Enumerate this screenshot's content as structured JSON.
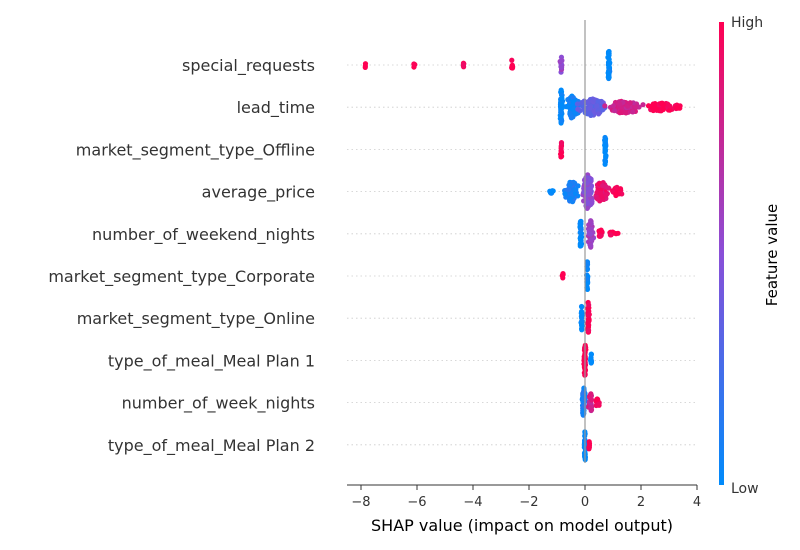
{
  "chart_data": {
    "type": "scatter",
    "subtype": "shap-beeswarm",
    "xlabel": "SHAP value (impact on model output)",
    "xlim": [
      -8.5,
      4
    ],
    "xticks": [
      -8,
      -6,
      -4,
      -2,
      0,
      2,
      4
    ],
    "xtick_labels": [
      "−8",
      "−6",
      "−4",
      "−2",
      "0",
      "2",
      "4"
    ],
    "grid": false,
    "colorbar": {
      "title": "Feature value",
      "high_label": "High",
      "low_label": "Low",
      "low_color": "#008bfb",
      "high_color": "#ff0052",
      "mid_color": "#8a4fd8"
    },
    "features": [
      {
        "name": "special_requests",
        "clusters": [
          {
            "x": -7.85,
            "spread": 0.04,
            "height": 0.12,
            "count": 3,
            "color": 1.0
          },
          {
            "x": -6.1,
            "spread": 0.05,
            "height": 0.15,
            "count": 4,
            "color": 1.0
          },
          {
            "x": -4.35,
            "spread": 0.05,
            "height": 0.2,
            "count": 5,
            "color": 1.0
          },
          {
            "x": -2.6,
            "spread": 0.05,
            "height": 0.28,
            "count": 8,
            "color": 1.0
          },
          {
            "x": -0.85,
            "spread": 0.05,
            "height": 0.42,
            "count": 14,
            "color": 0.55
          },
          {
            "x": 0.85,
            "spread": 0.05,
            "height": 0.75,
            "count": 40,
            "color": 0.0
          }
        ]
      },
      {
        "name": "lead_time",
        "clusters": [
          {
            "x": -0.85,
            "spread": 0.06,
            "height": 0.85,
            "count": 50,
            "color": 0.0
          },
          {
            "x": -0.45,
            "spread": 0.3,
            "height": 0.55,
            "count": 80,
            "color": 0.05
          },
          {
            "x": 0.25,
            "spread": 0.6,
            "height": 0.42,
            "count": 90,
            "color": 0.35
          },
          {
            "x": 1.4,
            "spread": 0.8,
            "height": 0.3,
            "count": 90,
            "color": 0.8
          },
          {
            "x": 2.7,
            "spread": 0.6,
            "height": 0.24,
            "count": 60,
            "color": 1.0
          },
          {
            "x": 3.3,
            "spread": 0.15,
            "height": 0.14,
            "count": 16,
            "color": 1.0
          }
        ]
      },
      {
        "name": "market_segment_type_Offline",
        "clusters": [
          {
            "x": -0.85,
            "spread": 0.04,
            "height": 0.45,
            "count": 14,
            "color": 1.0
          },
          {
            "x": 0.72,
            "spread": 0.04,
            "height": 0.75,
            "count": 30,
            "color": 0.0
          }
        ]
      },
      {
        "name": "average_price",
        "clusters": [
          {
            "x": -1.2,
            "spread": 0.12,
            "height": 0.1,
            "count": 8,
            "color": 0.0
          },
          {
            "x": -0.5,
            "spread": 0.3,
            "height": 0.55,
            "count": 80,
            "color": 0.1
          },
          {
            "x": 0.1,
            "spread": 0.25,
            "height": 0.85,
            "count": 110,
            "color": 0.5
          },
          {
            "x": 0.6,
            "spread": 0.3,
            "height": 0.55,
            "count": 70,
            "color": 0.9
          },
          {
            "x": 1.15,
            "spread": 0.2,
            "height": 0.22,
            "count": 20,
            "color": 1.0
          }
        ]
      },
      {
        "name": "number_of_weekend_nights",
        "clusters": [
          {
            "x": -0.15,
            "spread": 0.04,
            "height": 0.85,
            "count": 40,
            "color": 0.0
          },
          {
            "x": 0.2,
            "spread": 0.12,
            "height": 0.65,
            "count": 35,
            "color": 0.6
          },
          {
            "x": 0.55,
            "spread": 0.1,
            "height": 0.22,
            "count": 18,
            "color": 1.0
          },
          {
            "x": 1.0,
            "spread": 0.25,
            "height": 0.1,
            "count": 10,
            "color": 1.0
          }
        ]
      },
      {
        "name": "market_segment_type_Corporate",
        "clusters": [
          {
            "x": -0.8,
            "spread": 0.03,
            "height": 0.2,
            "count": 5,
            "color": 1.0
          },
          {
            "x": 0.08,
            "spread": 0.03,
            "height": 0.85,
            "count": 30,
            "color": 0.0
          }
        ]
      },
      {
        "name": "market_segment_type_Online",
        "clusters": [
          {
            "x": -0.12,
            "spread": 0.03,
            "height": 0.6,
            "count": 20,
            "color": 0.0
          },
          {
            "x": 0.12,
            "spread": 0.04,
            "height": 0.85,
            "count": 30,
            "color": 1.0
          }
        ]
      },
      {
        "name": "type_of_meal_Meal Plan 1",
        "clusters": [
          {
            "x": 0.0,
            "spread": 0.05,
            "height": 0.85,
            "count": 40,
            "color": 1.0
          },
          {
            "x": 0.22,
            "spread": 0.03,
            "height": 0.35,
            "count": 10,
            "color": 0.0
          }
        ]
      },
      {
        "name": "number_of_week_nights",
        "clusters": [
          {
            "x": -0.05,
            "spread": 0.08,
            "height": 0.75,
            "count": 45,
            "color": 0.1
          },
          {
            "x": 0.2,
            "spread": 0.1,
            "height": 0.45,
            "count": 25,
            "color": 0.8
          },
          {
            "x": 0.45,
            "spread": 0.1,
            "height": 0.2,
            "count": 12,
            "color": 1.0
          }
        ]
      },
      {
        "name": "type_of_meal_Meal Plan 2",
        "clusters": [
          {
            "x": 0.0,
            "spread": 0.03,
            "height": 0.85,
            "count": 30,
            "color": 0.0
          },
          {
            "x": 0.15,
            "spread": 0.02,
            "height": 0.25,
            "count": 6,
            "color": 1.0
          }
        ]
      }
    ]
  }
}
